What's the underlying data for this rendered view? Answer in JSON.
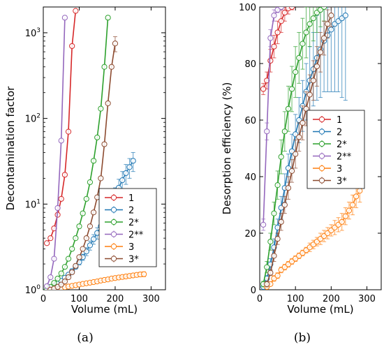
{
  "chart_data": [
    {
      "type": "line",
      "panel": "(a)",
      "xlabel": "Volume (mL)",
      "ylabel": "Decontamination factor",
      "xlim": [
        0,
        340
      ],
      "ylim": [
        1,
        2000
      ],
      "yscale": "log",
      "grid": false,
      "legend_position": "lower-right",
      "x_ticks": [
        0,
        100,
        200,
        300
      ],
      "y_ticks": [
        {
          "value": 1,
          "label": "10^0"
        },
        {
          "value": 10,
          "label": "10^1"
        },
        {
          "value": 100,
          "label": "10^2"
        },
        {
          "value": 1000,
          "label": "10^3"
        }
      ],
      "series": [
        {
          "name": "1",
          "color": "#d62728",
          "x": [
            10,
            20,
            30,
            40,
            50,
            60,
            70,
            80,
            90
          ],
          "y": [
            3.5,
            4.0,
            5.2,
            7.5,
            11.5,
            22,
            70,
            700,
            1800
          ]
        },
        {
          "name": "2",
          "color": "#1f77b4",
          "x": [
            10,
            20,
            30,
            40,
            50,
            60,
            70,
            80,
            90,
            100,
            110,
            120,
            130,
            140,
            150,
            160,
            170,
            180,
            190,
            200,
            210,
            220,
            230,
            240,
            250
          ],
          "y": [
            1.0,
            1.05,
            1.1,
            1.18,
            1.27,
            1.38,
            1.5,
            1.65,
            1.85,
            2.1,
            2.4,
            2.8,
            3.3,
            3.9,
            4.6,
            5.5,
            6.6,
            8,
            10,
            12.5,
            15.5,
            19,
            23,
            27,
            32
          ],
          "err": [
            0,
            0,
            0,
            0,
            0,
            0,
            0.05,
            0.1,
            0.1,
            0.15,
            0.2,
            0.3,
            0.4,
            0.5,
            0.7,
            0.9,
            1.1,
            1.5,
            2,
            3,
            4,
            5,
            6,
            7,
            8
          ]
        },
        {
          "name": "2*",
          "color": "#2ca02c",
          "x": [
            10,
            20,
            30,
            40,
            50,
            60,
            70,
            80,
            90,
            100,
            110,
            120,
            130,
            140,
            150,
            160,
            170,
            180
          ],
          "y": [
            1.0,
            1.08,
            1.2,
            1.35,
            1.55,
            1.85,
            2.3,
            3.0,
            4.0,
            5.5,
            7.8,
            11.5,
            18,
            32,
            60,
            130,
            400,
            1500
          ]
        },
        {
          "name": "2**",
          "color": "#9467bd",
          "x": [
            10,
            20,
            30,
            40,
            50,
            60
          ],
          "y": [
            1.1,
            1.4,
            2.3,
            9,
            55,
            1500
          ]
        },
        {
          "name": "3",
          "color": "#ff7f0e",
          "x": [
            20,
            30,
            40,
            50,
            60,
            70,
            80,
            90,
            100,
            110,
            120,
            130,
            140,
            150,
            160,
            170,
            180,
            190,
            200,
            210,
            220,
            230,
            240,
            250,
            260,
            270,
            280
          ],
          "y": [
            1.0,
            1.01,
            1.03,
            1.05,
            1.07,
            1.09,
            1.11,
            1.13,
            1.15,
            1.17,
            1.19,
            1.21,
            1.23,
            1.25,
            1.28,
            1.3,
            1.32,
            1.35,
            1.37,
            1.39,
            1.41,
            1.43,
            1.45,
            1.47,
            1.49,
            1.51,
            1.52
          ],
          "err": [
            0,
            0,
            0,
            0,
            0,
            0,
            0,
            0,
            0,
            0,
            0,
            0,
            0,
            0,
            0,
            0,
            0,
            0,
            0.02,
            0.03,
            0.04,
            0.05,
            0.06,
            0.07,
            0.08,
            0.09,
            0.1
          ]
        },
        {
          "name": "3*",
          "color": "#8c4a2f",
          "x": [
            20,
            30,
            40,
            50,
            60,
            70,
            80,
            90,
            100,
            110,
            120,
            130,
            140,
            150,
            160,
            170,
            180,
            190,
            200
          ],
          "y": [
            1.0,
            1.03,
            1.08,
            1.15,
            1.25,
            1.4,
            1.6,
            1.9,
            2.4,
            3.0,
            4.0,
            5.5,
            8,
            12,
            20,
            50,
            150,
            400,
            750
          ],
          "err": [
            0,
            0,
            0,
            0,
            0,
            0,
            0,
            0,
            0,
            0,
            0,
            0,
            0,
            0,
            0,
            0,
            0,
            0,
            150
          ]
        }
      ]
    },
    {
      "type": "line",
      "panel": "(b)",
      "xlabel": "Volume (mL)",
      "ylabel": "Desorption efficiency (%)",
      "xlim": [
        0,
        340
      ],
      "ylim": [
        0,
        100
      ],
      "grid": false,
      "legend_position": "upper-right",
      "x_ticks": [
        0,
        100,
        200,
        300
      ],
      "y_ticks": [
        0,
        20,
        40,
        60,
        80,
        100
      ],
      "series": [
        {
          "name": "1",
          "color": "#d62728",
          "x": [
            10,
            20,
            30,
            40,
            50,
            60,
            70,
            80,
            90
          ],
          "y": [
            71,
            74,
            81,
            86,
            91,
            95,
            98,
            99.5,
            100
          ],
          "err": [
            2,
            3,
            4,
            4,
            4,
            4,
            3,
            2,
            1
          ]
        },
        {
          "name": "2",
          "color": "#1f77b4",
          "x": [
            10,
            20,
            30,
            40,
            50,
            60,
            70,
            80,
            90,
            100,
            110,
            120,
            130,
            140,
            150,
            160,
            170,
            180,
            190,
            200,
            210,
            220,
            230,
            240
          ],
          "y": [
            1,
            4,
            9,
            15,
            22,
            29,
            36,
            43,
            49,
            55,
            60,
            65,
            70,
            74,
            78,
            82,
            85,
            88,
            90,
            92,
            94,
            95,
            96,
            97
          ],
          "err": [
            1,
            1,
            2,
            3,
            3,
            4,
            5,
            5,
            6,
            7,
            8,
            9,
            10,
            12,
            13,
            15,
            17,
            18,
            20,
            22,
            24,
            25,
            28,
            30
          ]
        },
        {
          "name": "2*",
          "color": "#2ca02c",
          "x": [
            10,
            20,
            30,
            40,
            50,
            60,
            70,
            80,
            90,
            100,
            110,
            120,
            130,
            140,
            150,
            160,
            170,
            180
          ],
          "y": [
            2,
            8,
            17,
            27,
            37,
            47,
            56,
            64,
            71,
            77,
            82,
            87,
            91,
            94,
            96,
            98,
            99,
            100
          ],
          "err": [
            1,
            2,
            3,
            4,
            5,
            6,
            7,
            8,
            8,
            9,
            9,
            9,
            9,
            8,
            8,
            7,
            6,
            5
          ]
        },
        {
          "name": "2**",
          "color": "#9467bd",
          "x": [
            10,
            20,
            30,
            40,
            50,
            60
          ],
          "y": [
            23,
            56,
            89,
            97,
            99,
            100
          ],
          "err": [
            2,
            3,
            3,
            2,
            1,
            1
          ]
        },
        {
          "name": "3",
          "color": "#ff7f0e",
          "x": [
            20,
            30,
            40,
            50,
            60,
            70,
            80,
            90,
            100,
            110,
            120,
            130,
            140,
            150,
            160,
            170,
            180,
            190,
            200,
            210,
            220,
            230,
            240,
            250,
            260,
            270,
            280
          ],
          "y": [
            1,
            2,
            4,
            5,
            7,
            8,
            9,
            10,
            11,
            12,
            13,
            14,
            15,
            16,
            17,
            18,
            19,
            20,
            21,
            22,
            23,
            24,
            26,
            28,
            30,
            33,
            35
          ],
          "err": [
            0.5,
            0.5,
            1,
            1,
            1,
            1,
            1,
            1,
            1,
            1,
            1,
            1,
            1.5,
            1.5,
            1.5,
            2,
            2,
            2,
            2,
            2.5,
            2.5,
            3,
            3,
            3,
            3.5,
            4,
            4
          ]
        },
        {
          "name": "3*",
          "color": "#8c4a2f",
          "x": [
            20,
            30,
            40,
            50,
            60,
            70,
            80,
            90,
            100,
            110,
            120,
            130,
            140,
            150,
            160,
            170,
            180,
            190,
            200
          ],
          "y": [
            2,
            6,
            12,
            18,
            24,
            30,
            36,
            42,
            48,
            54,
            59,
            64,
            69,
            74,
            79,
            84,
            89,
            94,
            97
          ],
          "err": [
            1,
            1,
            2,
            2,
            3,
            3,
            4,
            4,
            5,
            5,
            6,
            6,
            7,
            7,
            7,
            7,
            6,
            5,
            4
          ]
        }
      ]
    }
  ]
}
